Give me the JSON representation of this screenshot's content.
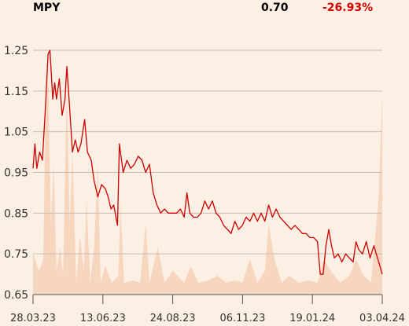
{
  "header": {
    "symbol": "MPY",
    "price": "0.70",
    "change": "-26.93%"
  },
  "colors": {
    "background": "#fcefe3",
    "price_line": "#cc0000",
    "volume_fill": "#f6d6bf",
    "gridline": "#c9bcb1",
    "negative_change": "#d40000"
  },
  "chart_data": {
    "type": "line",
    "title": "MPY",
    "ylim": [
      0.65,
      1.25
    ],
    "y_ticks": [
      "1.25",
      "1.15",
      "1.05",
      "0.95",
      "0.85",
      "0.75",
      "0.65"
    ],
    "x_ticks": [
      "28.03.23",
      "13.06.23",
      "24.08.23",
      "06.11.23",
      "19.01.24",
      "03.04.24"
    ],
    "x_range": [
      "2023-03-28",
      "2024-04-03"
    ],
    "grid": true,
    "price_series": {
      "name": "MPY",
      "points": [
        [
          "2023-03-28",
          0.96
        ],
        [
          "2023-03-30",
          1.02
        ],
        [
          "2023-04-01",
          0.96
        ],
        [
          "2023-04-04",
          1.0
        ],
        [
          "2023-04-07",
          0.98
        ],
        [
          "2023-04-10",
          1.1
        ],
        [
          "2023-04-13",
          1.24
        ],
        [
          "2023-04-15",
          1.25
        ],
        [
          "2023-04-18",
          1.13
        ],
        [
          "2023-04-20",
          1.17
        ],
        [
          "2023-04-22",
          1.13
        ],
        [
          "2023-04-25",
          1.18
        ],
        [
          "2023-04-28",
          1.09
        ],
        [
          "2023-05-01",
          1.13
        ],
        [
          "2023-05-03",
          1.21
        ],
        [
          "2023-05-06",
          1.11
        ],
        [
          "2023-05-09",
          1.0
        ],
        [
          "2023-05-12",
          1.03
        ],
        [
          "2023-05-15",
          1.0
        ],
        [
          "2023-05-18",
          1.02
        ],
        [
          "2023-05-22",
          1.08
        ],
        [
          "2023-05-25",
          1.0
        ],
        [
          "2023-05-29",
          0.98
        ],
        [
          "2023-06-01",
          0.93
        ],
        [
          "2023-06-05",
          0.89
        ],
        [
          "2023-06-09",
          0.92
        ],
        [
          "2023-06-13",
          0.91
        ],
        [
          "2023-06-16",
          0.89
        ],
        [
          "2023-06-19",
          0.86
        ],
        [
          "2023-06-22",
          0.87
        ],
        [
          "2023-06-26",
          0.82
        ],
        [
          "2023-06-28",
          1.02
        ],
        [
          "2023-07-02",
          0.95
        ],
        [
          "2023-07-06",
          0.98
        ],
        [
          "2023-07-10",
          0.96
        ],
        [
          "2023-07-14",
          0.97
        ],
        [
          "2023-07-18",
          0.99
        ],
        [
          "2023-07-22",
          0.98
        ],
        [
          "2023-07-26",
          0.95
        ],
        [
          "2023-07-30",
          0.97
        ],
        [
          "2023-08-03",
          0.9
        ],
        [
          "2023-08-07",
          0.87
        ],
        [
          "2023-08-11",
          0.85
        ],
        [
          "2023-08-15",
          0.86
        ],
        [
          "2023-08-19",
          0.85
        ],
        [
          "2023-08-24",
          0.85
        ],
        [
          "2023-08-28",
          0.85
        ],
        [
          "2023-09-01",
          0.86
        ],
        [
          "2023-09-05",
          0.84
        ],
        [
          "2023-09-08",
          0.9
        ],
        [
          "2023-09-11",
          0.85
        ],
        [
          "2023-09-15",
          0.84
        ],
        [
          "2023-09-19",
          0.84
        ],
        [
          "2023-09-23",
          0.85
        ],
        [
          "2023-09-27",
          0.88
        ],
        [
          "2023-10-01",
          0.86
        ],
        [
          "2023-10-05",
          0.88
        ],
        [
          "2023-10-09",
          0.85
        ],
        [
          "2023-10-13",
          0.84
        ],
        [
          "2023-10-17",
          0.82
        ],
        [
          "2023-10-21",
          0.81
        ],
        [
          "2023-10-25",
          0.8
        ],
        [
          "2023-10-29",
          0.83
        ],
        [
          "2023-11-02",
          0.81
        ],
        [
          "2023-11-06",
          0.82
        ],
        [
          "2023-11-10",
          0.84
        ],
        [
          "2023-11-14",
          0.83
        ],
        [
          "2023-11-18",
          0.85
        ],
        [
          "2023-11-22",
          0.83
        ],
        [
          "2023-11-26",
          0.85
        ],
        [
          "2023-11-30",
          0.83
        ],
        [
          "2023-12-04",
          0.87
        ],
        [
          "2023-12-08",
          0.84
        ],
        [
          "2023-12-12",
          0.86
        ],
        [
          "2023-12-16",
          0.84
        ],
        [
          "2023-12-20",
          0.83
        ],
        [
          "2023-12-24",
          0.82
        ],
        [
          "2023-12-28",
          0.81
        ],
        [
          "2024-01-01",
          0.82
        ],
        [
          "2024-01-05",
          0.81
        ],
        [
          "2024-01-09",
          0.8
        ],
        [
          "2024-01-13",
          0.8
        ],
        [
          "2024-01-17",
          0.79
        ],
        [
          "2024-01-21",
          0.79
        ],
        [
          "2024-01-25",
          0.78
        ],
        [
          "2024-01-28",
          0.7
        ],
        [
          "2024-01-31",
          0.7
        ],
        [
          "2024-02-03",
          0.77
        ],
        [
          "2024-02-06",
          0.81
        ],
        [
          "2024-02-09",
          0.77
        ],
        [
          "2024-02-12",
          0.74
        ],
        [
          "2024-02-16",
          0.75
        ],
        [
          "2024-02-20",
          0.73
        ],
        [
          "2024-02-24",
          0.75
        ],
        [
          "2024-02-28",
          0.74
        ],
        [
          "2024-03-03",
          0.73
        ],
        [
          "2024-03-06",
          0.78
        ],
        [
          "2024-03-09",
          0.76
        ],
        [
          "2024-03-13",
          0.75
        ],
        [
          "2024-03-17",
          0.78
        ],
        [
          "2024-03-21",
          0.74
        ],
        [
          "2024-03-25",
          0.77
        ],
        [
          "2024-03-29",
          0.74
        ],
        [
          "2024-04-03",
          0.7
        ]
      ]
    },
    "volume_series": {
      "points": [
        [
          "2023-03-28",
          0.18
        ],
        [
          "2023-04-03",
          0.1
        ],
        [
          "2023-04-08",
          0.15
        ],
        [
          "2023-04-10",
          0.7
        ],
        [
          "2023-04-13",
          0.95
        ],
        [
          "2023-04-16",
          0.3
        ],
        [
          "2023-04-19",
          0.55
        ],
        [
          "2023-04-22",
          0.1
        ],
        [
          "2023-04-26",
          0.2
        ],
        [
          "2023-04-29",
          0.08
        ],
        [
          "2023-05-03",
          0.88
        ],
        [
          "2023-05-06",
          0.3
        ],
        [
          "2023-05-09",
          0.6
        ],
        [
          "2023-05-13",
          0.05
        ],
        [
          "2023-05-17",
          0.25
        ],
        [
          "2023-05-21",
          0.1
        ],
        [
          "2023-05-24",
          0.4
        ],
        [
          "2023-05-28",
          0.05
        ],
        [
          "2023-06-01",
          0.2
        ],
        [
          "2023-06-05",
          0.55
        ],
        [
          "2023-06-08",
          0.05
        ],
        [
          "2023-06-13",
          0.12
        ],
        [
          "2023-06-20",
          0.05
        ],
        [
          "2023-06-27",
          0.08
        ],
        [
          "2023-06-29",
          0.4
        ],
        [
          "2023-07-03",
          0.05
        ],
        [
          "2023-07-12",
          0.06
        ],
        [
          "2023-07-20",
          0.05
        ],
        [
          "2023-07-26",
          0.3
        ],
        [
          "2023-07-30",
          0.05
        ],
        [
          "2023-08-08",
          0.2
        ],
        [
          "2023-08-15",
          0.05
        ],
        [
          "2023-08-24",
          0.1
        ],
        [
          "2023-09-05",
          0.05
        ],
        [
          "2023-09-12",
          0.12
        ],
        [
          "2023-09-20",
          0.05
        ],
        [
          "2023-10-01",
          0.06
        ],
        [
          "2023-10-10",
          0.08
        ],
        [
          "2023-10-20",
          0.05
        ],
        [
          "2023-10-29",
          0.06
        ],
        [
          "2023-11-06",
          0.05
        ],
        [
          "2023-11-14",
          0.15
        ],
        [
          "2023-11-22",
          0.05
        ],
        [
          "2023-11-30",
          0.1
        ],
        [
          "2023-12-04",
          0.3
        ],
        [
          "2023-12-10",
          0.15
        ],
        [
          "2023-12-18",
          0.05
        ],
        [
          "2023-12-26",
          0.08
        ],
        [
          "2024-01-05",
          0.05
        ],
        [
          "2024-01-15",
          0.06
        ],
        [
          "2024-01-25",
          0.05
        ],
        [
          "2024-02-01",
          0.15
        ],
        [
          "2024-02-08",
          0.1
        ],
        [
          "2024-02-18",
          0.05
        ],
        [
          "2024-02-28",
          0.08
        ],
        [
          "2024-03-06",
          0.15
        ],
        [
          "2024-03-14",
          0.08
        ],
        [
          "2024-03-22",
          0.05
        ],
        [
          "2024-03-30",
          0.4
        ],
        [
          "2024-04-03",
          0.85
        ]
      ]
    }
  }
}
